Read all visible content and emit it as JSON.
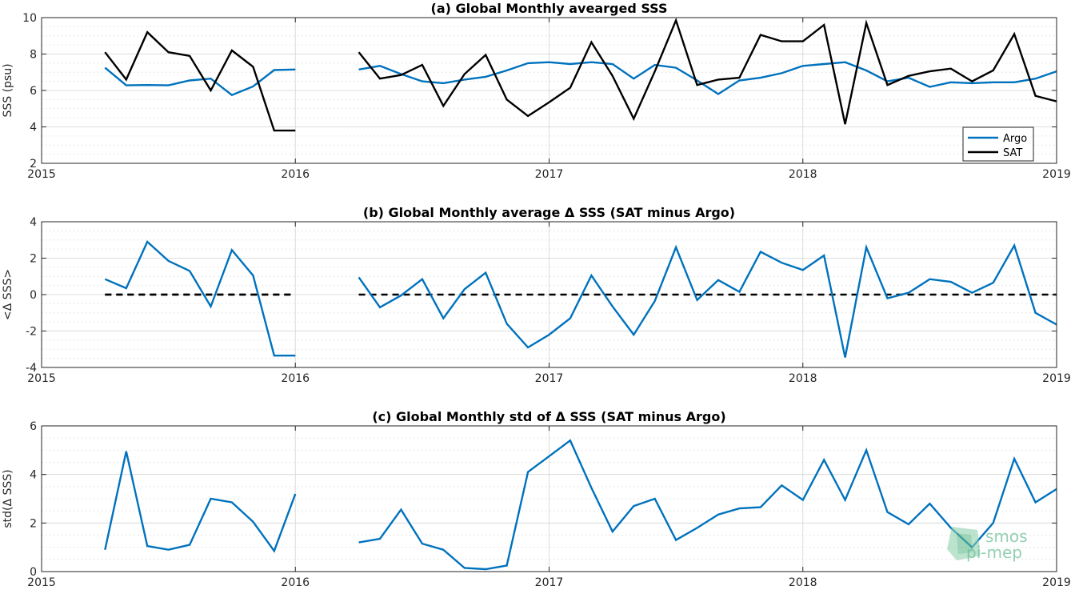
{
  "chart_data": [
    {
      "type": "line",
      "title": "(a) Global Monthly avearged SSS",
      "ylabel": "SSS (psu)",
      "xlim": [
        "2015-01",
        "2019-01"
      ],
      "ylim": [
        2,
        10
      ],
      "xticks": [
        "2015",
        "2016",
        "2017",
        "2018",
        "2019"
      ],
      "yticks": [
        2,
        4,
        6,
        8,
        10
      ],
      "grid": true,
      "legend": "bottom-right",
      "series": [
        {
          "name": "Argo",
          "color": "#0072BD",
          "points": [
            [
              "2015-04",
              7.25
            ],
            [
              "2015-05",
              6.28
            ],
            [
              "2015-06",
              6.3
            ],
            [
              "2015-07",
              6.28
            ],
            [
              "2015-08",
              6.55
            ],
            [
              "2015-09",
              6.65
            ],
            [
              "2015-10",
              5.75
            ],
            [
              "2015-11",
              6.22
            ],
            [
              "2015-12",
              7.12
            ],
            [
              "2016-01",
              7.15
            ],
            null,
            [
              "2016-04",
              7.15
            ],
            [
              "2016-05",
              7.35
            ],
            [
              "2016-06",
              6.9
            ],
            [
              "2016-07",
              6.5
            ],
            [
              "2016-08",
              6.4
            ],
            [
              "2016-09",
              6.6
            ],
            [
              "2016-10",
              6.75
            ],
            [
              "2016-11",
              7.1
            ],
            [
              "2016-12",
              7.5
            ],
            [
              "2017-01",
              7.55
            ],
            [
              "2017-02",
              7.45
            ],
            [
              "2017-03",
              7.55
            ],
            [
              "2017-04",
              7.45
            ],
            [
              "2017-05",
              6.65
            ],
            [
              "2017-06",
              7.4
            ],
            [
              "2017-07",
              7.25
            ],
            [
              "2017-08",
              6.55
            ],
            [
              "2017-09",
              5.8
            ],
            [
              "2017-10",
              6.55
            ],
            [
              "2017-11",
              6.7
            ],
            [
              "2017-12",
              6.95
            ],
            [
              "2018-01",
              7.35
            ],
            [
              "2018-02",
              7.45
            ],
            [
              "2018-03",
              7.55
            ],
            [
              "2018-04",
              7.1
            ],
            [
              "2018-05",
              6.5
            ],
            [
              "2018-06",
              6.7
            ],
            [
              "2018-07",
              6.2
            ],
            [
              "2018-08",
              6.45
            ],
            [
              "2018-09",
              6.4
            ],
            [
              "2018-10",
              6.45
            ],
            [
              "2018-11",
              6.45
            ],
            [
              "2018-12",
              6.65
            ],
            [
              "2019-01",
              7.05
            ]
          ]
        },
        {
          "name": "SAT",
          "color": "#000000",
          "points": [
            [
              "2015-04",
              8.1
            ],
            [
              "2015-05",
              6.6
            ],
            [
              "2015-06",
              9.2
            ],
            [
              "2015-07",
              8.1
            ],
            [
              "2015-08",
              7.9
            ],
            [
              "2015-09",
              6.0
            ],
            [
              "2015-10",
              8.2
            ],
            [
              "2015-11",
              7.3
            ],
            [
              "2015-12",
              3.8
            ],
            [
              "2016-01",
              3.8
            ],
            null,
            [
              "2016-04",
              8.1
            ],
            [
              "2016-05",
              6.65
            ],
            [
              "2016-06",
              6.85
            ],
            [
              "2016-07",
              7.4
            ],
            [
              "2016-08",
              5.15
            ],
            [
              "2016-09",
              6.9
            ],
            [
              "2016-10",
              7.95
            ],
            [
              "2016-11",
              5.5
            ],
            [
              "2016-12",
              4.6
            ],
            [
              "2017-01",
              5.35
            ],
            [
              "2017-02",
              6.15
            ],
            [
              "2017-03",
              8.65
            ],
            [
              "2017-04",
              6.8
            ],
            [
              "2017-05",
              4.45
            ],
            [
              "2017-06",
              7.05
            ],
            [
              "2017-07",
              9.85
            ],
            [
              "2017-08",
              6.3
            ],
            [
              "2017-09",
              6.6
            ],
            [
              "2017-10",
              6.7
            ],
            [
              "2017-11",
              9.05
            ],
            [
              "2017-12",
              8.7
            ],
            [
              "2018-01",
              8.7
            ],
            [
              "2018-02",
              9.6
            ],
            [
              "2018-03",
              4.15
            ],
            [
              "2018-04",
              9.7
            ],
            [
              "2018-05",
              6.3
            ],
            [
              "2018-06",
              6.8
            ],
            [
              "2018-07",
              7.05
            ],
            [
              "2018-08",
              7.2
            ],
            [
              "2018-09",
              6.5
            ],
            [
              "2018-10",
              7.1
            ],
            [
              "2018-11",
              9.1
            ],
            [
              "2018-12",
              5.7
            ],
            [
              "2019-01",
              5.4
            ]
          ]
        }
      ]
    },
    {
      "type": "line",
      "title": "(b) Global Monthly average Δ SSS (SAT minus Argo)",
      "ylabel": "<Δ SSS>",
      "xlim": [
        "2015-01",
        "2019-01"
      ],
      "ylim": [
        -4,
        4
      ],
      "xticks": [
        "2015",
        "2016",
        "2017",
        "2018",
        "2019"
      ],
      "yticks": [
        -4,
        -2,
        0,
        2,
        4
      ],
      "grid": true,
      "zero_line": "dashed",
      "series": [
        {
          "color": "#0072BD",
          "points": [
            [
              "2015-04",
              0.85
            ],
            [
              "2015-05",
              0.35
            ],
            [
              "2015-06",
              2.9
            ],
            [
              "2015-07",
              1.85
            ],
            [
              "2015-08",
              1.3
            ],
            [
              "2015-09",
              -0.65
            ],
            [
              "2015-10",
              2.45
            ],
            [
              "2015-11",
              1.05
            ],
            [
              "2015-12",
              -3.35
            ],
            [
              "2016-01",
              -3.35
            ],
            null,
            [
              "2016-04",
              0.95
            ],
            [
              "2016-05",
              -0.7
            ],
            [
              "2016-06",
              -0.05
            ],
            [
              "2016-07",
              0.85
            ],
            [
              "2016-08",
              -1.3
            ],
            [
              "2016-09",
              0.3
            ],
            [
              "2016-10",
              1.2
            ],
            [
              "2016-11",
              -1.6
            ],
            [
              "2016-12",
              -2.9
            ],
            [
              "2017-01",
              -2.2
            ],
            [
              "2017-02",
              -1.3
            ],
            [
              "2017-03",
              1.05
            ],
            [
              "2017-04",
              -0.65
            ],
            [
              "2017-05",
              -2.2
            ],
            [
              "2017-06",
              -0.35
            ],
            [
              "2017-07",
              2.6
            ],
            [
              "2017-08",
              -0.3
            ],
            [
              "2017-09",
              0.8
            ],
            [
              "2017-10",
              0.15
            ],
            [
              "2017-11",
              2.35
            ],
            [
              "2017-12",
              1.75
            ],
            [
              "2018-01",
              1.35
            ],
            [
              "2018-02",
              2.15
            ],
            [
              "2018-03",
              -3.45
            ],
            [
              "2018-04",
              2.6
            ],
            [
              "2018-05",
              -0.2
            ],
            [
              "2018-06",
              0.1
            ],
            [
              "2018-07",
              0.85
            ],
            [
              "2018-08",
              0.7
            ],
            [
              "2018-09",
              0.1
            ],
            [
              "2018-10",
              0.65
            ],
            [
              "2018-11",
              2.7
            ],
            [
              "2018-12",
              -1.0
            ],
            [
              "2019-01",
              -1.65
            ]
          ]
        }
      ]
    },
    {
      "type": "line",
      "title": "(c) Global Monthly std of Δ SSS (SAT minus Argo)",
      "ylabel": "std(Δ SSS)",
      "xlim": [
        "2015-01",
        "2019-01"
      ],
      "ylim": [
        0,
        6
      ],
      "xticks": [
        "2015",
        "2016",
        "2017",
        "2018",
        "2019"
      ],
      "yticks": [
        0,
        2,
        4,
        6
      ],
      "grid": true,
      "series": [
        {
          "color": "#0072BD",
          "points": [
            [
              "2015-04",
              0.9
            ],
            [
              "2015-05",
              4.95
            ],
            [
              "2015-06",
              1.05
            ],
            [
              "2015-07",
              0.9
            ],
            [
              "2015-08",
              1.1
            ],
            [
              "2015-09",
              3.0
            ],
            [
              "2015-10",
              2.85
            ],
            [
              "2015-11",
              2.05
            ],
            [
              "2015-12",
              0.85
            ],
            [
              "2016-01",
              3.2
            ],
            null,
            [
              "2016-04",
              1.2
            ],
            [
              "2016-05",
              1.35
            ],
            [
              "2016-06",
              2.55
            ],
            [
              "2016-07",
              1.15
            ],
            [
              "2016-08",
              0.9
            ],
            [
              "2016-09",
              0.15
            ],
            [
              "2016-10",
              0.1
            ],
            [
              "2016-11",
              0.25
            ],
            [
              "2016-12",
              4.1
            ],
            [
              "2017-01",
              4.75
            ],
            [
              "2017-02",
              5.4
            ],
            [
              "2017-03",
              3.45
            ],
            [
              "2017-04",
              1.65
            ],
            [
              "2017-05",
              2.7
            ],
            [
              "2017-06",
              3.0
            ],
            [
              "2017-07",
              1.3
            ],
            [
              "2017-08",
              1.8
            ],
            [
              "2017-09",
              2.35
            ],
            [
              "2017-10",
              2.6
            ],
            [
              "2017-11",
              2.65
            ],
            [
              "2017-12",
              3.55
            ],
            [
              "2018-01",
              2.95
            ],
            [
              "2018-02",
              4.6
            ],
            [
              "2018-03",
              2.95
            ],
            [
              "2018-04",
              5.0
            ],
            [
              "2018-05",
              2.45
            ],
            [
              "2018-06",
              1.95
            ],
            [
              "2018-07",
              2.8
            ],
            [
              "2018-08",
              1.8
            ],
            [
              "2018-09",
              1.0
            ],
            [
              "2018-10",
              2.0
            ],
            [
              "2018-11",
              4.65
            ],
            [
              "2018-12",
              2.85
            ],
            [
              "2019-01",
              3.4
            ]
          ]
        }
      ]
    }
  ],
  "watermark": {
    "line1": "smos",
    "line2": "pi-mep"
  }
}
